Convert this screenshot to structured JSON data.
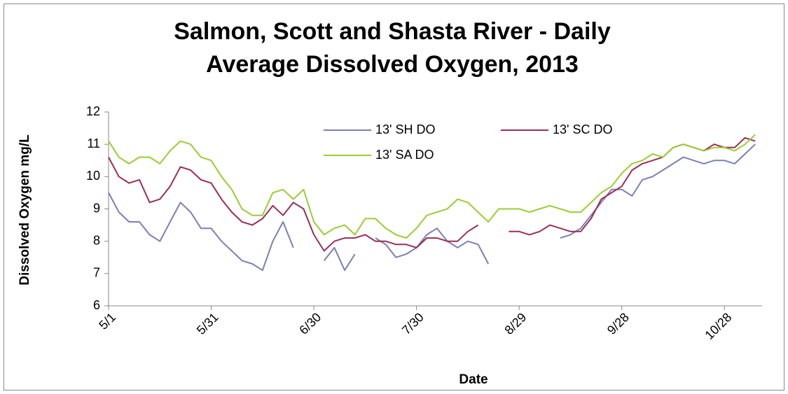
{
  "chart_data": {
    "type": "line",
    "title": "Salmon, Scott and Shasta River - Daily Average Dissolved Oxygen, 2013",
    "x_label": "Date",
    "y_label": "Dissolved Oxygen mg/L",
    "x": [
      "5/1",
      "5/4",
      "5/7",
      "5/10",
      "5/13",
      "5/16",
      "5/19",
      "5/22",
      "5/25",
      "5/28",
      "5/31",
      "6/3",
      "6/6",
      "6/9",
      "6/12",
      "6/15",
      "6/18",
      "6/21",
      "6/24",
      "6/27",
      "6/30",
      "7/3",
      "7/6",
      "7/9",
      "7/12",
      "7/15",
      "7/18",
      "7/21",
      "7/24",
      "7/27",
      "7/30",
      "8/2",
      "8/5",
      "8/8",
      "8/11",
      "8/14",
      "8/17",
      "8/20",
      "8/23",
      "8/26",
      "8/29",
      "9/1",
      "9/4",
      "9/7",
      "9/10",
      "9/13",
      "9/16",
      "9/19",
      "9/22",
      "9/25",
      "9/28",
      "10/1",
      "10/4",
      "10/7",
      "10/10",
      "10/13",
      "10/16",
      "10/19",
      "10/22",
      "10/25",
      "10/28",
      "10/31",
      "11/3",
      "11/6"
    ],
    "xlim": [
      "5/1",
      "11/8"
    ],
    "xticks": [
      "5/1",
      "5/31",
      "6/30",
      "7/30",
      "8/29",
      "9/28",
      "10/28"
    ],
    "ylim": [
      6,
      12
    ],
    "yticks": [
      6,
      7,
      8,
      9,
      10,
      11,
      12
    ],
    "grid": false,
    "legend": "top",
    "series": [
      {
        "name": "13' SH DO",
        "color": "#7b7fb6",
        "values": [
          9.5,
          8.9,
          8.6,
          8.6,
          8.2,
          8.0,
          8.6,
          9.2,
          8.9,
          8.4,
          8.4,
          8.0,
          7.7,
          7.4,
          7.3,
          7.1,
          8.0,
          8.6,
          7.8,
          null,
          null,
          7.4,
          7.8,
          7.1,
          7.6,
          null,
          8.1,
          7.9,
          7.5,
          7.6,
          7.8,
          8.2,
          8.4,
          8.0,
          7.8,
          8.0,
          7.9,
          7.3,
          null,
          null,
          null,
          null,
          null,
          null,
          8.1,
          8.2,
          8.4,
          8.8,
          9.2,
          9.6,
          9.6,
          9.4,
          9.9,
          10.0,
          10.2,
          10.4,
          10.6,
          10.5,
          10.4,
          10.5,
          10.5,
          10.4,
          10.7,
          11.0
        ]
      },
      {
        "name": "13' SC DO",
        "color": "#9b2d57",
        "values": [
          10.6,
          10.0,
          9.8,
          9.9,
          9.2,
          9.3,
          9.7,
          10.3,
          10.2,
          9.9,
          9.8,
          9.3,
          8.9,
          8.6,
          8.5,
          8.7,
          9.1,
          8.8,
          9.2,
          9.0,
          8.2,
          7.7,
          8.0,
          8.1,
          8.1,
          8.2,
          8.0,
          8.0,
          7.9,
          7.9,
          7.8,
          8.1,
          8.1,
          8.0,
          8.0,
          8.3,
          8.5,
          null,
          null,
          8.3,
          8.3,
          8.2,
          8.3,
          8.5,
          8.4,
          8.3,
          8.3,
          8.7,
          9.3,
          9.5,
          9.7,
          10.2,
          10.4,
          10.5,
          10.6,
          10.9,
          11.0,
          10.9,
          10.8,
          11.0,
          10.9,
          10.9,
          11.2,
          11.1
        ]
      },
      {
        "name": "13' SA DO",
        "color": "#9acd32",
        "values": [
          11.1,
          10.6,
          10.4,
          10.6,
          10.6,
          10.4,
          10.8,
          11.1,
          11.0,
          10.6,
          10.5,
          10.0,
          9.6,
          9.0,
          8.8,
          8.8,
          9.5,
          9.6,
          9.3,
          9.6,
          8.6,
          8.2,
          8.4,
          8.5,
          8.2,
          8.7,
          8.7,
          8.4,
          8.2,
          8.1,
          8.4,
          8.8,
          8.9,
          9.0,
          9.3,
          9.2,
          8.9,
          8.6,
          9.0,
          9.0,
          9.0,
          8.9,
          9.0,
          9.1,
          9.0,
          8.9,
          8.9,
          9.2,
          9.5,
          9.7,
          10.1,
          10.4,
          10.5,
          10.7,
          10.6,
          10.9,
          11.0,
          10.9,
          10.8,
          10.9,
          10.9,
          10.8,
          11.0,
          11.3
        ]
      }
    ]
  }
}
